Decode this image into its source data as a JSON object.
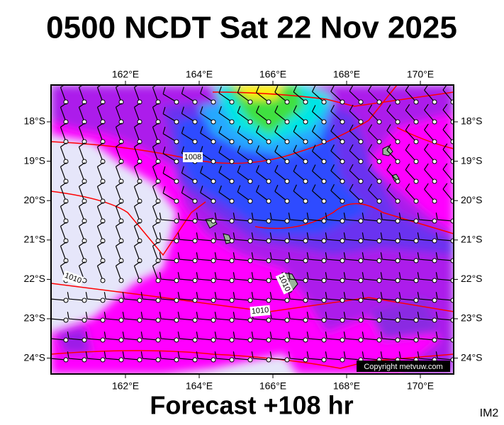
{
  "title": "0500 NCDT Sat 22 Nov 2025",
  "longitude_labels": [
    "162°E",
    "164°E",
    "166°E",
    "168°E",
    "170°E"
  ],
  "latitude_labels": [
    "18°S",
    "19°S",
    "20°S",
    "21°S",
    "22°S",
    "23°S",
    "24°S"
  ],
  "isobar_labels": [
    "1008",
    "1010",
    "1010",
    "1010"
  ],
  "copyright": "Copyright metvuw.com",
  "footer": "Forecast +108 hr",
  "image_id": "IM2"
}
